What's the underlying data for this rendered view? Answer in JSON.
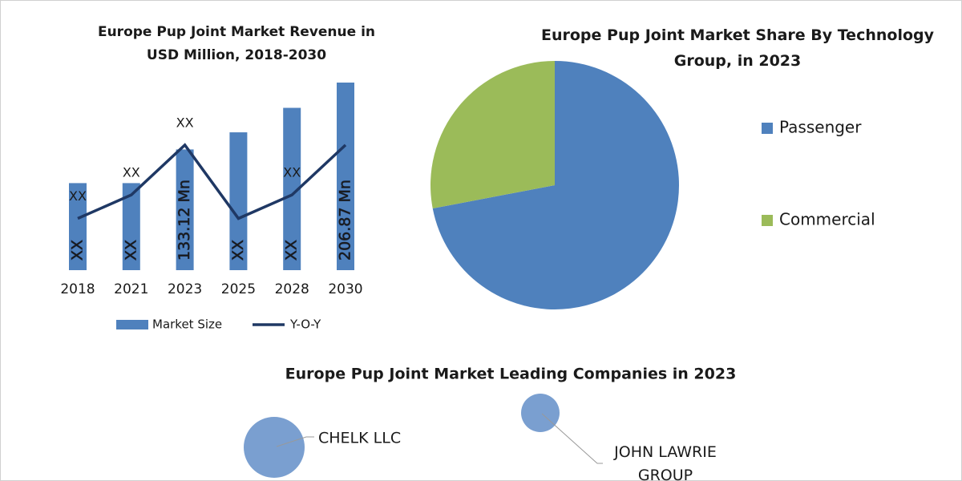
{
  "chart_data": [
    {
      "type": "bar-line",
      "title": "Europe Pup Joint Market Revenue in USD Million, 2018-2030",
      "categories": [
        "2018",
        "2021",
        "2023",
        "2025",
        "2028",
        "2030"
      ],
      "series": [
        {
          "name": "Market Size",
          "type": "bar",
          "color": "#4f81bd",
          "values": [
            96,
            96,
            133.12,
            152,
            179,
            206.87
          ],
          "value_labels": [
            "XX",
            "XX",
            "133.12 Mn",
            "XX",
            "XX",
            "206.87 Mn"
          ]
        },
        {
          "name": "Y-O-Y",
          "type": "line",
          "color": "#1f3864",
          "values": [
            57,
            83,
            138,
            57,
            83,
            138
          ],
          "value_labels": [
            "XX",
            "XX",
            "XX",
            null,
            "XX",
            null
          ]
        }
      ]
    },
    {
      "type": "pie",
      "title": "Europe Pup Joint Market Share By Technology Group, in 2023",
      "categories": [
        "Passenger",
        "Commercial"
      ],
      "values": [
        72,
        28
      ],
      "colors": [
        "#4f81bd",
        "#9bbb59"
      ]
    }
  ],
  "companies": {
    "title": "Europe Pup Joint Market Leading Companies in 2023",
    "items": [
      "CHELK LLC",
      "JOHN LAWRIE GROUP"
    ]
  }
}
